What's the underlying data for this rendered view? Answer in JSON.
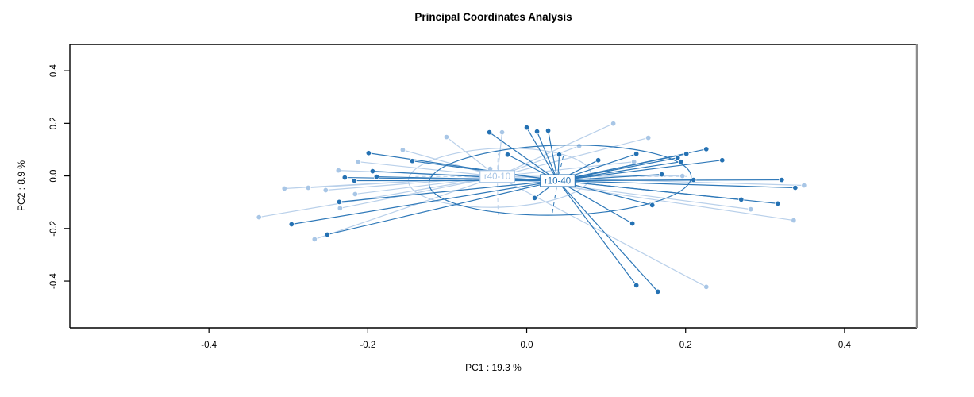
{
  "chart_data": {
    "type": "scatter",
    "title": "Principal Coordinates Analysis",
    "xlabel": "PC1 : 19.3 %",
    "ylabel": "PC2 : 8.9 %",
    "xlim": [
      -0.575,
      0.491
    ],
    "ylim": [
      -0.578,
      0.5
    ],
    "grid": false,
    "legend_position": "none",
    "x_ticks": [
      {
        "v": -0.4,
        "label": "-0.4"
      },
      {
        "v": -0.2,
        "label": "-0.2"
      },
      {
        "v": 0.0,
        "label": "0.0"
      },
      {
        "v": 0.2,
        "label": "0.2"
      },
      {
        "v": 0.4,
        "label": "0.4"
      }
    ],
    "y_ticks": [
      {
        "v": -0.4,
        "label": "-0.4"
      },
      {
        "v": -0.2,
        "label": "-0.2"
      },
      {
        "v": 0.0,
        "label": "0.0"
      },
      {
        "v": 0.2,
        "label": "0.2"
      },
      {
        "v": 0.4,
        "label": "0.4"
      }
    ],
    "frame_colors": {
      "box": "#000000",
      "right_edge": "#8c8c8c"
    },
    "groups": [
      {
        "name": "r40-10",
        "point_color": "#a8c6e6",
        "line_color": "#b9d0ea",
        "centroid": [
          -0.037,
          -0.002
        ],
        "ellipse": {
          "cx": -0.034,
          "cy": -0.007,
          "rx": 0.115,
          "ry": 0.112,
          "angle_deg": -2
        },
        "dashed_rays": [
          [
            -0.036,
            0.085
          ],
          [
            -0.036,
            -0.148
          ],
          [
            0.205,
            -0.002
          ],
          [
            -0.14,
            -0.002
          ]
        ],
        "points": [
          [
            -0.337,
            -0.157
          ],
          [
            -0.305,
            -0.048
          ],
          [
            -0.275,
            -0.045
          ],
          [
            -0.253,
            -0.054
          ],
          [
            -0.267,
            -0.241
          ],
          [
            -0.237,
            0.021
          ],
          [
            -0.235,
            -0.123
          ],
          [
            -0.216,
            -0.069
          ],
          [
            -0.212,
            0.054
          ],
          [
            -0.156,
            0.099
          ],
          [
            -0.101,
            0.148
          ],
          [
            -0.046,
            0.027
          ],
          [
            -0.031,
            0.166
          ],
          [
            0.066,
            0.114
          ],
          [
            0.109,
            0.199
          ],
          [
            0.153,
            0.145
          ],
          [
            0.135,
            0.054
          ],
          [
            0.196,
            0.0
          ],
          [
            0.282,
            -0.127
          ],
          [
            0.336,
            -0.169
          ],
          [
            0.349,
            -0.036
          ],
          [
            0.226,
            -0.422
          ]
        ]
      },
      {
        "name": "r10-40",
        "point_color": "#2471b3",
        "line_color": "#2e78b8",
        "centroid": [
          0.039,
          -0.018
        ],
        "ellipse": {
          "cx": 0.042,
          "cy": -0.016,
          "rx": 0.165,
          "ry": 0.133,
          "angle_deg": -1.5
        },
        "dashed_rays": [
          [
            0.032,
            -0.145
          ],
          [
            0.046,
            0.075
          ]
        ],
        "points": [
          [
            -0.296,
            -0.184
          ],
          [
            -0.251,
            -0.223
          ],
          [
            -0.236,
            -0.099
          ],
          [
            -0.229,
            -0.006
          ],
          [
            -0.217,
            -0.018
          ],
          [
            -0.199,
            0.087
          ],
          [
            -0.194,
            0.018
          ],
          [
            -0.189,
            -0.003
          ],
          [
            -0.144,
            0.057
          ],
          [
            -0.047,
            0.166
          ],
          [
            -0.024,
            0.081
          ],
          [
            0.0,
            0.184
          ],
          [
            0.013,
            0.169
          ],
          [
            0.027,
            0.172
          ],
          [
            0.041,
            0.081
          ],
          [
            0.09,
            0.06
          ],
          [
            0.01,
            -0.084
          ],
          [
            0.138,
            0.084
          ],
          [
            0.19,
            0.069
          ],
          [
            0.201,
            0.084
          ],
          [
            0.226,
            0.102
          ],
          [
            0.194,
            0.054
          ],
          [
            0.246,
            0.06
          ],
          [
            0.17,
            0.006
          ],
          [
            0.21,
            -0.015
          ],
          [
            0.321,
            -0.015
          ],
          [
            0.338,
            -0.045
          ],
          [
            0.27,
            -0.09
          ],
          [
            0.316,
            -0.105
          ],
          [
            0.158,
            -0.111
          ],
          [
            0.133,
            -0.181
          ],
          [
            0.138,
            -0.416
          ],
          [
            0.165,
            -0.44
          ]
        ]
      }
    ]
  }
}
